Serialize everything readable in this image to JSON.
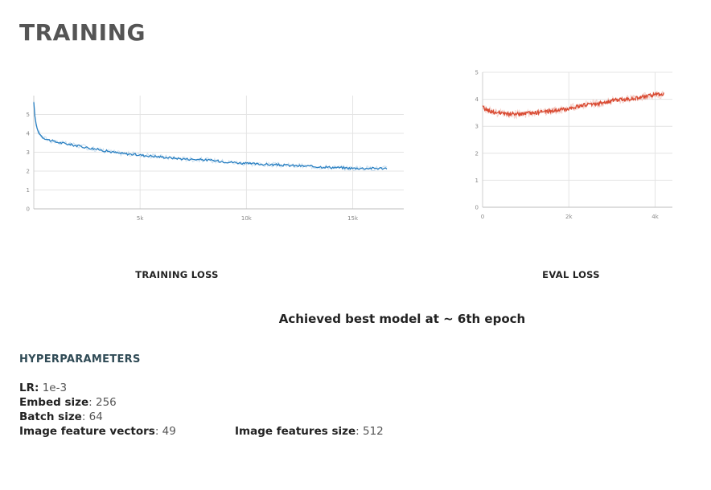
{
  "page": {
    "title": "TRAINING"
  },
  "chart_data": [
    {
      "type": "line",
      "caption": "TRAINING LOSS",
      "xlim": [
        0,
        17400
      ],
      "ylim": [
        0,
        6
      ],
      "xticks": [
        5000,
        10000,
        15000
      ],
      "xtick_labels": [
        "5k",
        "10k",
        "15k"
      ],
      "yticks": [
        0,
        1,
        2,
        3,
        4,
        5
      ],
      "grid": true,
      "color": "#2a80c2",
      "series": [
        {
          "x": [
            0,
            80,
            200,
            400,
            700,
            1000,
            1500,
            2000,
            3000,
            4000,
            5000,
            6000,
            7000,
            8000,
            9000,
            10000,
            11000,
            12000,
            13000,
            14000,
            15000,
            16000,
            16600
          ],
          "y": [
            5.6,
            4.6,
            4.1,
            3.8,
            3.65,
            3.55,
            3.45,
            3.35,
            3.15,
            2.95,
            2.85,
            2.75,
            2.65,
            2.6,
            2.5,
            2.4,
            2.35,
            2.3,
            2.25,
            2.2,
            2.15,
            2.15,
            2.15
          ]
        }
      ]
    },
    {
      "type": "line",
      "caption": "EVAL LOSS",
      "xlim": [
        0,
        4400
      ],
      "ylim": [
        0,
        5
      ],
      "xticks": [
        0,
        2000,
        4000
      ],
      "xtick_labels": [
        "0",
        "2k",
        "4k"
      ],
      "yticks": [
        0,
        1,
        2,
        3,
        4,
        5
      ],
      "grid": true,
      "color": "#d94a32",
      "series": [
        {
          "x": [
            0,
            100,
            300,
            600,
            900,
            1200,
            1500,
            1800,
            2100,
            2400,
            2700,
            3000,
            3300,
            3600,
            3900,
            4200
          ],
          "y": [
            3.7,
            3.6,
            3.5,
            3.45,
            3.45,
            3.5,
            3.55,
            3.6,
            3.7,
            3.8,
            3.85,
            3.95,
            4.0,
            4.05,
            4.15,
            4.2
          ]
        }
      ]
    }
  ],
  "summary": "Achieved best model at ~ 6th epoch",
  "hyperparameters": {
    "heading": "HYPERPARAMETERS",
    "lr_label": "LR:",
    "lr_value": "1e-3",
    "embed_label": "Embed size",
    "embed_value": ": 256",
    "batch_label": "Batch size",
    "batch_value": ": 64",
    "vectors_label": "Image feature vectors",
    "vectors_value": ": 49",
    "features_label": "Image features size",
    "features_value": ": 512"
  }
}
